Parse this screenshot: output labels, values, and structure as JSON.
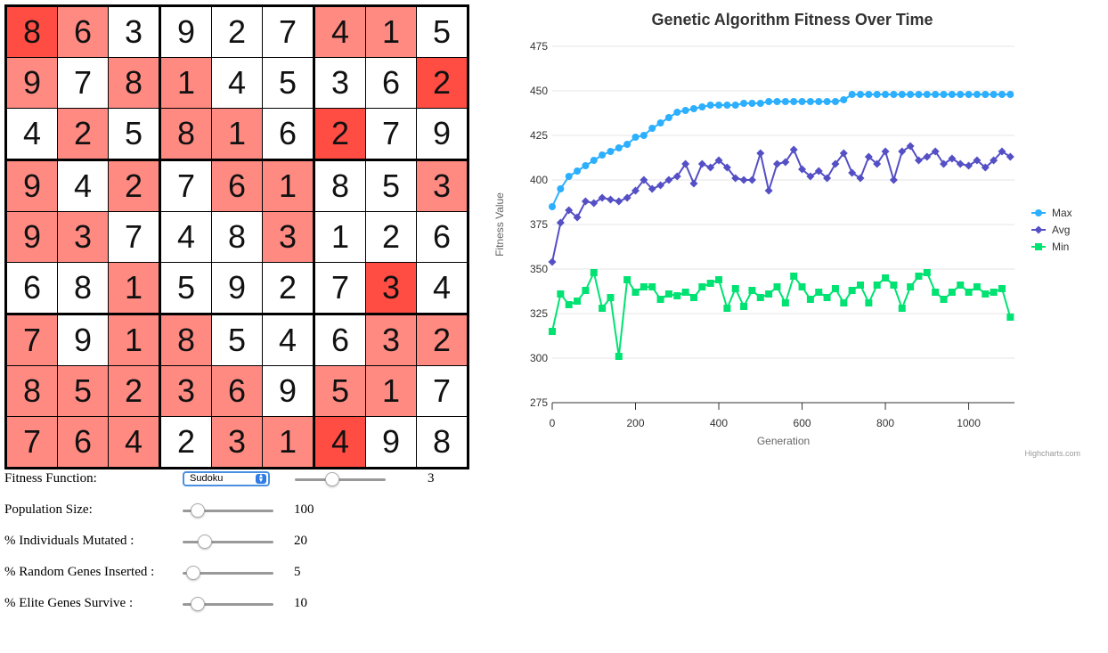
{
  "sudoku": {
    "grid": [
      [
        8,
        6,
        3,
        9,
        2,
        7,
        4,
        1,
        5
      ],
      [
        9,
        7,
        8,
        1,
        4,
        5,
        3,
        6,
        2
      ],
      [
        4,
        2,
        5,
        8,
        1,
        6,
        2,
        7,
        9
      ],
      [
        9,
        4,
        2,
        7,
        6,
        1,
        8,
        5,
        3
      ],
      [
        9,
        3,
        7,
        4,
        8,
        3,
        1,
        2,
        6
      ],
      [
        6,
        8,
        1,
        5,
        9,
        2,
        7,
        3,
        4
      ],
      [
        7,
        9,
        1,
        8,
        5,
        4,
        6,
        3,
        2
      ],
      [
        8,
        5,
        2,
        3,
        6,
        9,
        5,
        1,
        7
      ],
      [
        7,
        6,
        4,
        2,
        3,
        1,
        4,
        9,
        8
      ]
    ],
    "highlight": [
      [
        3,
        1,
        0,
        0,
        0,
        0,
        1,
        1,
        0
      ],
      [
        1,
        0,
        1,
        1,
        0,
        0,
        0,
        0,
        3
      ],
      [
        0,
        1,
        0,
        1,
        1,
        0,
        3,
        0,
        0
      ],
      [
        1,
        0,
        1,
        0,
        1,
        1,
        0,
        0,
        1
      ],
      [
        1,
        1,
        0,
        0,
        0,
        1,
        0,
        0,
        0
      ],
      [
        0,
        0,
        1,
        0,
        0,
        0,
        0,
        3,
        0
      ],
      [
        1,
        0,
        1,
        1,
        0,
        0,
        0,
        1,
        1
      ],
      [
        1,
        1,
        1,
        1,
        1,
        0,
        1,
        1,
        0
      ],
      [
        1,
        1,
        1,
        0,
        1,
        1,
        3,
        0,
        0
      ]
    ],
    "highlight_colors": [
      "#ffffff",
      "#ff8a82",
      "#ff6f66",
      "#ff4d44"
    ]
  },
  "controls": {
    "fitness_label": "Fitness Function:",
    "fitness_selected": "Sudoku",
    "fitness_param_value": "3",
    "fitness_param_fraction": 0.4,
    "population_label": "Population Size:",
    "population_value": "100",
    "population_fraction": 0.1,
    "mutated_label": "% Individuals Mutated :",
    "mutated_value": "20",
    "mutated_fraction": 0.2,
    "random_label": "% Random Genes Inserted :",
    "random_value": "5",
    "random_fraction": 0.05,
    "elite_label": "% Elite Genes Survive :",
    "elite_value": "10",
    "elite_fraction": 0.1
  },
  "chart_data": {
    "type": "line",
    "title": "Genetic Algorithm Fitness Over Time",
    "xlabel": "Generation",
    "ylabel": "Fitness Value",
    "xlim": [
      0,
      1110
    ],
    "ylim": [
      275,
      475
    ],
    "xticks": [
      0,
      200,
      400,
      600,
      800,
      1000
    ],
    "yticks": [
      275,
      300,
      325,
      350,
      375,
      400,
      425,
      450,
      475
    ],
    "grid": true,
    "legend": "right",
    "credit": "Highcharts.com",
    "series": [
      {
        "name": "Max",
        "color": "#2caffe",
        "marker": "circle",
        "values": [
          [
            0,
            385
          ],
          [
            20,
            395
          ],
          [
            40,
            402
          ],
          [
            60,
            405
          ],
          [
            80,
            408
          ],
          [
            100,
            411
          ],
          [
            120,
            414
          ],
          [
            140,
            416
          ],
          [
            160,
            418
          ],
          [
            180,
            420
          ],
          [
            200,
            424
          ],
          [
            220,
            425
          ],
          [
            240,
            429
          ],
          [
            260,
            432
          ],
          [
            280,
            435
          ],
          [
            300,
            438
          ],
          [
            320,
            439
          ],
          [
            340,
            440
          ],
          [
            360,
            441
          ],
          [
            380,
            442
          ],
          [
            400,
            442
          ],
          [
            420,
            442
          ],
          [
            440,
            442
          ],
          [
            460,
            443
          ],
          [
            480,
            443
          ],
          [
            500,
            443
          ],
          [
            520,
            444
          ],
          [
            540,
            444
          ],
          [
            560,
            444
          ],
          [
            580,
            444
          ],
          [
            600,
            444
          ],
          [
            620,
            444
          ],
          [
            640,
            444
          ],
          [
            660,
            444
          ],
          [
            680,
            444
          ],
          [
            700,
            445
          ],
          [
            720,
            448
          ],
          [
            740,
            448
          ],
          [
            760,
            448
          ],
          [
            780,
            448
          ],
          [
            800,
            448
          ],
          [
            820,
            448
          ],
          [
            840,
            448
          ],
          [
            860,
            448
          ],
          [
            880,
            448
          ],
          [
            900,
            448
          ],
          [
            920,
            448
          ],
          [
            940,
            448
          ],
          [
            960,
            448
          ],
          [
            980,
            448
          ],
          [
            1000,
            448
          ],
          [
            1020,
            448
          ],
          [
            1040,
            448
          ],
          [
            1060,
            448
          ],
          [
            1080,
            448
          ],
          [
            1100,
            448
          ]
        ]
      },
      {
        "name": "Avg",
        "color": "#544fc5",
        "marker": "diamond",
        "values": [
          [
            0,
            354
          ],
          [
            20,
            376
          ],
          [
            40,
            383
          ],
          [
            60,
            379
          ],
          [
            80,
            388
          ],
          [
            100,
            387
          ],
          [
            120,
            390
          ],
          [
            140,
            389
          ],
          [
            160,
            388
          ],
          [
            180,
            390
          ],
          [
            200,
            394
          ],
          [
            220,
            400
          ],
          [
            240,
            395
          ],
          [
            260,
            397
          ],
          [
            280,
            400
          ],
          [
            300,
            402
          ],
          [
            320,
            409
          ],
          [
            340,
            398
          ],
          [
            360,
            409
          ],
          [
            380,
            407
          ],
          [
            400,
            411
          ],
          [
            420,
            407
          ],
          [
            440,
            401
          ],
          [
            460,
            400
          ],
          [
            480,
            400
          ],
          [
            500,
            415
          ],
          [
            520,
            394
          ],
          [
            540,
            409
          ],
          [
            560,
            410
          ],
          [
            580,
            417
          ],
          [
            600,
            406
          ],
          [
            620,
            402
          ],
          [
            640,
            405
          ],
          [
            660,
            401
          ],
          [
            680,
            409
          ],
          [
            700,
            415
          ],
          [
            720,
            404
          ],
          [
            740,
            401
          ],
          [
            760,
            413
          ],
          [
            780,
            409
          ],
          [
            800,
            416
          ],
          [
            820,
            400
          ],
          [
            840,
            416
          ],
          [
            860,
            419
          ],
          [
            880,
            411
          ],
          [
            900,
            413
          ],
          [
            920,
            416
          ],
          [
            940,
            409
          ],
          [
            960,
            412
          ],
          [
            980,
            409
          ],
          [
            1000,
            408
          ],
          [
            1020,
            411
          ],
          [
            1040,
            407
          ],
          [
            1060,
            411
          ],
          [
            1080,
            416
          ],
          [
            1100,
            413
          ]
        ]
      },
      {
        "name": "Min",
        "color": "#00e272",
        "marker": "square",
        "values": [
          [
            0,
            315
          ],
          [
            20,
            336
          ],
          [
            40,
            330
          ],
          [
            60,
            332
          ],
          [
            80,
            338
          ],
          [
            100,
            348
          ],
          [
            120,
            328
          ],
          [
            140,
            334
          ],
          [
            160,
            301
          ],
          [
            180,
            344
          ],
          [
            200,
            337
          ],
          [
            220,
            340
          ],
          [
            240,
            340
          ],
          [
            260,
            333
          ],
          [
            280,
            336
          ],
          [
            300,
            335
          ],
          [
            320,
            337
          ],
          [
            340,
            334
          ],
          [
            360,
            340
          ],
          [
            380,
            342
          ],
          [
            400,
            344
          ],
          [
            420,
            328
          ],
          [
            440,
            339
          ],
          [
            460,
            329
          ],
          [
            480,
            338
          ],
          [
            500,
            334
          ],
          [
            520,
            336
          ],
          [
            540,
            340
          ],
          [
            560,
            331
          ],
          [
            580,
            346
          ],
          [
            600,
            340
          ],
          [
            620,
            333
          ],
          [
            640,
            337
          ],
          [
            660,
            334
          ],
          [
            680,
            339
          ],
          [
            700,
            331
          ],
          [
            720,
            338
          ],
          [
            740,
            341
          ],
          [
            760,
            331
          ],
          [
            780,
            341
          ],
          [
            800,
            345
          ],
          [
            820,
            341
          ],
          [
            840,
            328
          ],
          [
            860,
            340
          ],
          [
            880,
            346
          ],
          [
            900,
            348
          ],
          [
            920,
            337
          ],
          [
            940,
            333
          ],
          [
            960,
            337
          ],
          [
            980,
            341
          ],
          [
            1000,
            337
          ],
          [
            1020,
            340
          ],
          [
            1040,
            336
          ],
          [
            1060,
            337
          ],
          [
            1080,
            339
          ],
          [
            1100,
            323
          ]
        ]
      }
    ]
  }
}
